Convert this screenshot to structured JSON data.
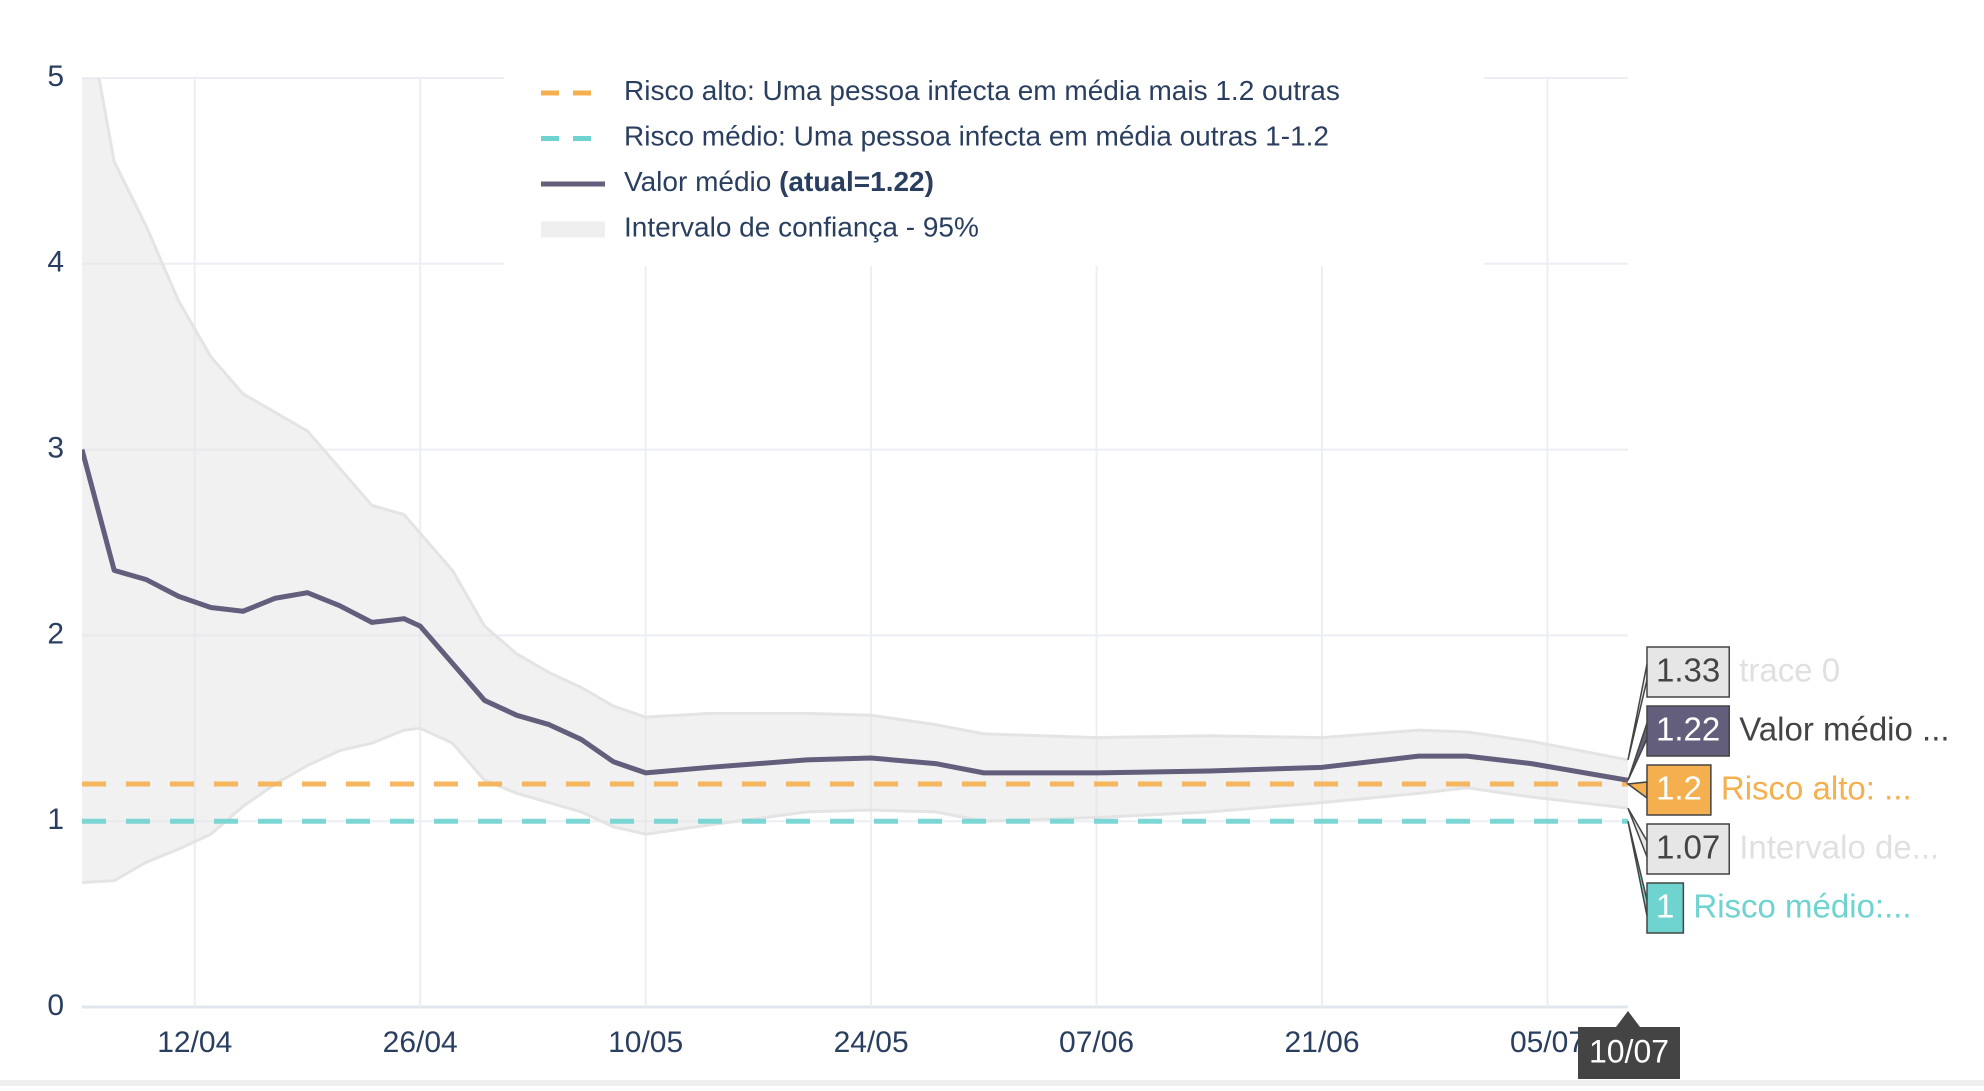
{
  "chart_data": {
    "type": "line",
    "x": [
      "05/04",
      "07/04",
      "09/04",
      "11/04",
      "13/04",
      "15/04",
      "17/04",
      "19/04",
      "21/04",
      "23/04",
      "25/04",
      "26/04",
      "28/04",
      "30/04",
      "02/05",
      "04/05",
      "06/05",
      "08/05",
      "10/05",
      "14/05",
      "20/05",
      "24/05",
      "28/05",
      "31/05",
      "07/06",
      "14/06",
      "21/06",
      "27/06",
      "30/06",
      "04/07",
      "10/07"
    ],
    "xlim": [
      "05/04",
      "10/07"
    ],
    "xticks": [
      "12/04",
      "26/04",
      "10/05",
      "24/05",
      "07/06",
      "21/06",
      "05/07"
    ],
    "ylim": [
      0,
      5
    ],
    "yticks": [
      0,
      1,
      2,
      3,
      4,
      5
    ],
    "grid": true,
    "series": [
      {
        "name": "Valor médio",
        "legend_note": "(atual=1.22)",
        "color": "#625e7c",
        "values": [
          3.0,
          2.35,
          2.3,
          2.21,
          2.15,
          2.13,
          2.2,
          2.23,
          2.16,
          2.07,
          2.09,
          2.05,
          1.85,
          1.65,
          1.57,
          1.52,
          1.44,
          1.32,
          1.26,
          1.29,
          1.33,
          1.34,
          1.31,
          1.26,
          1.26,
          1.27,
          1.29,
          1.35,
          1.35,
          1.31,
          1.22
        ]
      }
    ],
    "band": {
      "name": "Intervalo de confiança - 95%",
      "color": "#e4e4e4",
      "upper": [
        5.5,
        4.55,
        4.2,
        3.8,
        3.5,
        3.3,
        3.2,
        3.1,
        2.9,
        2.7,
        2.65,
        2.55,
        2.35,
        2.05,
        1.9,
        1.8,
        1.72,
        1.62,
        1.56,
        1.58,
        1.58,
        1.57,
        1.52,
        1.47,
        1.45,
        1.46,
        1.45,
        1.49,
        1.48,
        1.43,
        1.33
      ],
      "lower": [
        0.67,
        0.68,
        0.78,
        0.85,
        0.93,
        1.08,
        1.2,
        1.3,
        1.38,
        1.42,
        1.49,
        1.5,
        1.42,
        1.22,
        1.15,
        1.1,
        1.05,
        0.97,
        0.93,
        0.98,
        1.05,
        1.06,
        1.05,
        1.0,
        1.02,
        1.05,
        1.1,
        1.15,
        1.18,
        1.13,
        1.07
      ]
    },
    "reference_lines": [
      {
        "name": "Risco alto: Uma pessoa infecta em média mais 1.2 outras",
        "value": 1.2,
        "color": "#f4b04f"
      },
      {
        "name": "Risco médio: Uma pessoa infecta em média outras 1-1.2",
        "value": 1,
        "color": "#6fd3d0"
      }
    ],
    "hover": {
      "x_label": "10/07",
      "items": [
        {
          "value": 1.33,
          "text": "trace 0",
          "color": "#e6e6e6",
          "text_color": "#e0e0e0"
        },
        {
          "value": 1.22,
          "text": "Valor médio ...",
          "color": "#625e7c",
          "text_color": "#444444"
        },
        {
          "value": 1.2,
          "text": "Risco alto: ...",
          "color": "#f4b04f",
          "text_color": "#f4b04f"
        },
        {
          "value": 1.07,
          "text": "Intervalo de...",
          "color": "#e6e6e6",
          "text_color": "#e0e0e0"
        },
        {
          "value": 1,
          "text": "Risco médio:...",
          "color": "#6fd3d0",
          "text_color": "#6fd3d0"
        }
      ]
    }
  }
}
